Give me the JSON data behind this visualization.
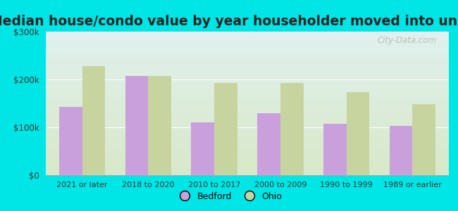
{
  "title": "Median house/condo value by year householder moved into unit",
  "categories": [
    "2021 or later",
    "2018 to 2020",
    "2010 to 2017",
    "2000 to 2009",
    "1990 to 1999",
    "1989 or earlier"
  ],
  "bedford_values": [
    143000,
    207000,
    110000,
    130000,
    108000,
    103000
  ],
  "ohio_values": [
    228000,
    207000,
    193000,
    193000,
    173000,
    148000
  ],
  "bedford_color": "#c9a0dc",
  "ohio_color": "#c8d4a0",
  "ylim": [
    0,
    300000
  ],
  "yticks": [
    0,
    100000,
    200000,
    300000
  ],
  "ytick_labels": [
    "$0",
    "$100k",
    "$200k",
    "$300k"
  ],
  "background_outer": "#00e5e5",
  "background_inner_top": "#e0f0ee",
  "background_inner_bottom": "#d8e8c8",
  "watermark": "City-Data.com",
  "legend_bedford": "Bedford",
  "legend_ohio": "Ohio",
  "bar_width": 0.35,
  "title_fontsize": 13.5,
  "title_color": "#222222"
}
